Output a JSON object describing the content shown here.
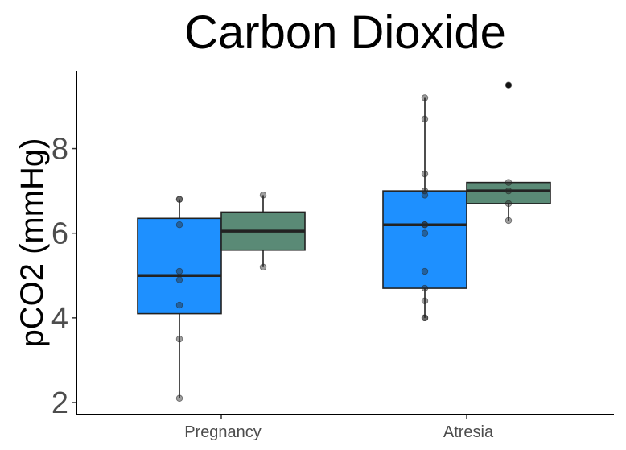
{
  "chart_data": {
    "type": "box",
    "title": "Carbon Dioxide",
    "xlabel": "",
    "ylabel": "pCO2 (mmHg)",
    "categories": [
      "Pregnancy",
      "Atresia"
    ],
    "y_ticks": [
      2,
      4,
      6,
      8
    ],
    "ylim": [
      1.7,
      9.8
    ],
    "grid": false,
    "legend": "none",
    "series": [
      {
        "color": "#1e90ff",
        "boxes": [
          {
            "category": "Pregnancy",
            "q1": 4.1,
            "median": 5.0,
            "q3": 6.35,
            "whisker_low": 2.1,
            "whisker_high": 6.8,
            "points": [
              6.8,
              6.8,
              6.2,
              5.1,
              4.9,
              4.3,
              3.5,
              2.1
            ]
          },
          {
            "category": "Atresia",
            "q1": 4.7,
            "median": 6.2,
            "q3": 7.0,
            "whisker_low": 4.0,
            "whisker_high": 9.2,
            "points": [
              9.2,
              8.7,
              7.4,
              7.0,
              6.9,
              6.2,
              6.2,
              6.0,
              5.1,
              4.7,
              4.4,
              4.0,
              4.0
            ]
          }
        ]
      },
      {
        "color": "#5a8a76",
        "boxes": [
          {
            "category": "Pregnancy",
            "q1": 5.6,
            "median": 6.05,
            "q3": 6.5,
            "whisker_low": 5.2,
            "whisker_high": 6.9,
            "points": [
              6.9,
              5.2
            ]
          },
          {
            "category": "Atresia",
            "q1": 6.7,
            "median": 7.0,
            "q3": 7.2,
            "whisker_low": 6.3,
            "whisker_high": 7.2,
            "points": [
              7.2,
              7.0,
              6.7,
              6.3
            ],
            "outliers": [
              9.5
            ]
          }
        ]
      }
    ]
  }
}
